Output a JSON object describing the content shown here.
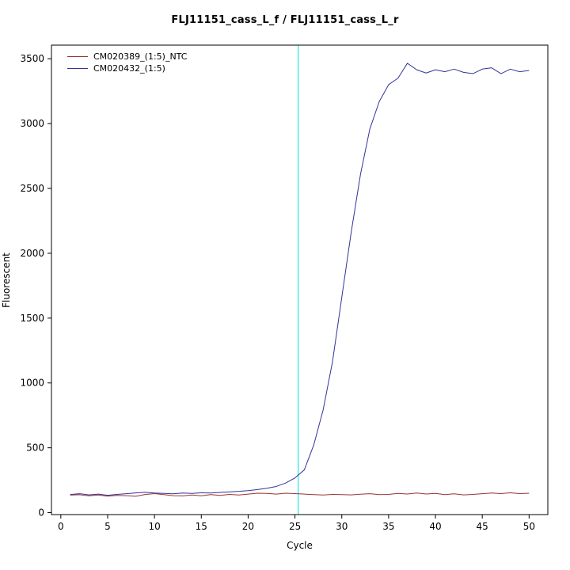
{
  "chart_data": {
    "type": "line",
    "title": "FLJ11151_cass_L_f / FLJ11151_cass_L_r",
    "xlabel": "Cycle",
    "ylabel": "Fluorescent",
    "grid": false,
    "legend_position": "top-left",
    "x_axis": {
      "ticks": [
        0,
        5,
        10,
        15,
        20,
        25,
        30,
        35,
        40,
        45,
        50
      ],
      "range": [
        -1,
        52
      ]
    },
    "y_axis": {
      "ticks": [
        0,
        500,
        1000,
        1500,
        2000,
        2500,
        3000,
        3500
      ],
      "range": [
        -15,
        3605
      ]
    },
    "x": [
      1,
      2,
      3,
      4,
      5,
      6,
      7,
      8,
      9,
      10,
      11,
      12,
      13,
      14,
      15,
      16,
      17,
      18,
      19,
      20,
      21,
      22,
      23,
      24,
      25,
      26,
      27,
      28,
      29,
      30,
      31,
      32,
      33,
      34,
      35,
      36,
      37,
      38,
      39,
      40,
      41,
      42,
      43,
      44,
      45,
      46,
      47,
      48,
      49,
      50
    ],
    "series": [
      {
        "name": "CM020389_(1:5)_NTC",
        "color": "#993333",
        "values": [
          135,
          138,
          130,
          136,
          127,
          133,
          131,
          126,
          140,
          147,
          139,
          131,
          129,
          136,
          130,
          139,
          133,
          141,
          136,
          143,
          150,
          148,
          143,
          150,
          147,
          143,
          139,
          136,
          141,
          139,
          137,
          142,
          146,
          139,
          141,
          148,
          144,
          151,
          144,
          148,
          139,
          145,
          137,
          141,
          146,
          151,
          147,
          153,
          147,
          150
        ]
      },
      {
        "name": "CM020432_(1:5)",
        "color": "#333399",
        "values": [
          140,
          146,
          137,
          143,
          134,
          141,
          146,
          152,
          157,
          151,
          148,
          145,
          151,
          148,
          153,
          151,
          156,
          160,
          164,
          170,
          178,
          188,
          202,
          228,
          268,
          330,
          520,
          790,
          1160,
          1660,
          2160,
          2610,
          2960,
          3170,
          3300,
          3350,
          3465,
          3415,
          3390,
          3415,
          3400,
          3420,
          3395,
          3385,
          3420,
          3430,
          3385,
          3420,
          3400,
          3410
        ]
      }
    ],
    "threshold_line": {
      "orientation": "vertical",
      "x": 25.35,
      "color": "#00dddd"
    }
  }
}
